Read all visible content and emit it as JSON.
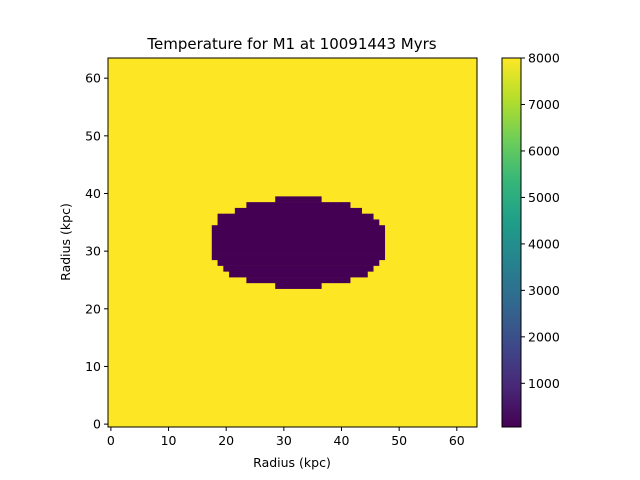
{
  "chart_data": {
    "type": "heatmap",
    "title": "Temperature for M1 at 10091443 Myrs",
    "xlabel": "Radius (kpc)",
    "ylabel": "Radius (kpc)",
    "x_ticks": [
      "0",
      "10",
      "20",
      "30",
      "40",
      "50",
      "60"
    ],
    "y_ticks": [
      "0",
      "10",
      "20",
      "30",
      "40",
      "50",
      "60"
    ],
    "xlim": [
      -0.5,
      63.5
    ],
    "ylim": [
      63.5,
      -0.5
    ],
    "y_inverted": true,
    "grid_shape": [
      64,
      64
    ],
    "colormap": "viridis",
    "background_value": 8000,
    "region": {
      "description_value": 0,
      "row_spans": [
        {
          "row": 24,
          "x_start": 29,
          "x_end": 36
        },
        {
          "row": 25,
          "x_start": 24,
          "x_end": 41
        },
        {
          "row": 26,
          "x_start": 22,
          "x_end": 43
        },
        {
          "row": 27,
          "x_start": 19,
          "x_end": 45
        },
        {
          "row": 28,
          "x_start": 19,
          "x_end": 46
        },
        {
          "row": 29,
          "x_start": 18,
          "x_end": 47
        },
        {
          "row": 30,
          "x_start": 18,
          "x_end": 47
        },
        {
          "row": 31,
          "x_start": 18,
          "x_end": 47
        },
        {
          "row": 32,
          "x_start": 18,
          "x_end": 47
        },
        {
          "row": 33,
          "x_start": 18,
          "x_end": 47
        },
        {
          "row": 34,
          "x_start": 18,
          "x_end": 47
        },
        {
          "row": 35,
          "x_start": 19,
          "x_end": 46
        },
        {
          "row": 36,
          "x_start": 20,
          "x_end": 45
        },
        {
          "row": 37,
          "x_start": 21,
          "x_end": 44
        },
        {
          "row": 38,
          "x_start": 24,
          "x_end": 41
        },
        {
          "row": 39,
          "x_start": 29,
          "x_end": 36
        }
      ]
    },
    "colorbar": {
      "range": [
        60,
        8000
      ],
      "ticks": [
        "1000",
        "2000",
        "3000",
        "4000",
        "5000",
        "6000",
        "7000",
        "8000"
      ],
      "colors": [
        "#440154",
        "#482878",
        "#3e4989",
        "#31688e",
        "#26828e",
        "#1f9e89",
        "#35b779",
        "#6ece58",
        "#b5de2b",
        "#fde725"
      ]
    }
  }
}
